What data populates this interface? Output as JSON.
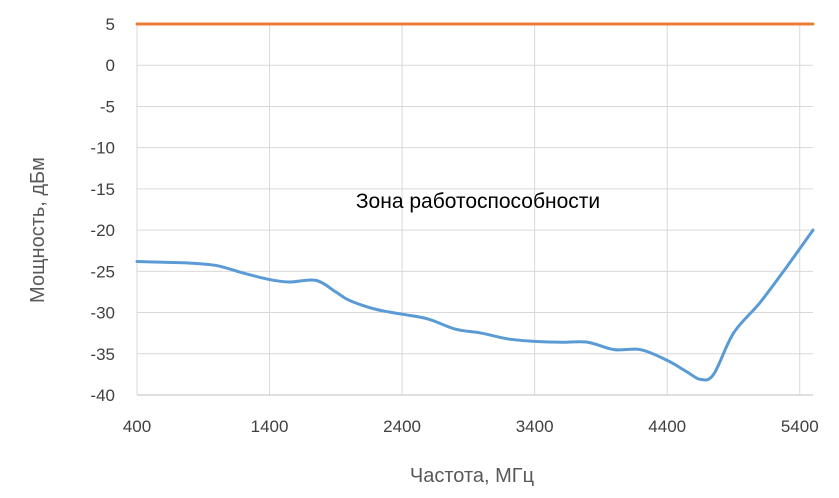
{
  "chart_data": {
    "type": "line",
    "title": "",
    "xlabel": "Частота, МГц",
    "ylabel": "Мощность, дБм",
    "xlim": [
      400,
      5500
    ],
    "ylim": [
      -40,
      5
    ],
    "xticks": [
      400,
      1400,
      2400,
      3400,
      4400,
      5400
    ],
    "yticks": [
      5,
      0,
      -5,
      -10,
      -15,
      -20,
      -25,
      -30,
      -35,
      -40
    ],
    "grid": true,
    "legend": "none",
    "annotation": "Зона работоспособности",
    "series": [
      {
        "color": "#5b9bd5",
        "x": [
          400,
          600,
          800,
          1000,
          1200,
          1400,
          1550,
          1750,
          1900,
          2000,
          2200,
          2400,
          2600,
          2800,
          3000,
          3200,
          3400,
          3600,
          3800,
          4000,
          4200,
          4400,
          4550,
          4650,
          4750,
          4900,
          5100,
          5300,
          5500
        ],
        "y": [
          -23.8,
          -23.9,
          -24.0,
          -24.3,
          -25.2,
          -26.0,
          -26.3,
          -26.1,
          -27.5,
          -28.5,
          -29.6,
          -30.2,
          -30.8,
          -32.0,
          -32.5,
          -33.2,
          -33.5,
          -33.6,
          -33.6,
          -34.5,
          -34.5,
          -35.8,
          -37.2,
          -38.1,
          -37.5,
          -32.5,
          -28.8,
          -24.5,
          -20.0
        ]
      },
      {
        "color": "#ed7d31",
        "x": [
          400,
          5500
        ],
        "y": [
          5,
          5
        ]
      }
    ]
  }
}
